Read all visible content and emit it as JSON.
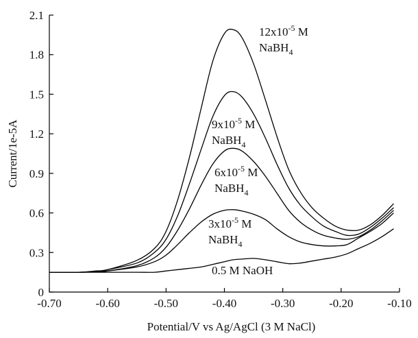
{
  "chart_data": {
    "type": "line",
    "title": "",
    "xlabel": "Potential/V vs Ag/AgCl (3 M NaCl)",
    "ylabel": "Current/1e-5A",
    "xlim": [
      -0.7,
      -0.1
    ],
    "ylim": [
      0,
      2.1
    ],
    "xticks": [
      "-0.70",
      "-0.60",
      "-0.50",
      "-0.40",
      "-0.30",
      "-0.20",
      "-0.10"
    ],
    "yticks": [
      "0",
      "0.3",
      "0.6",
      "0.9",
      "1.2",
      "1.5",
      "1.8",
      "2.1"
    ],
    "grid": false,
    "legend": "none",
    "x": [
      -0.7,
      -0.65,
      -0.62,
      -0.6,
      -0.55,
      -0.52,
      -0.5,
      -0.48,
      -0.46,
      -0.44,
      -0.42,
      -0.4,
      -0.385,
      -0.37,
      -0.35,
      -0.33,
      -0.31,
      -0.29,
      -0.27,
      -0.25,
      -0.23,
      -0.21,
      -0.19,
      -0.17,
      -0.15,
      -0.13,
      -0.11
    ],
    "series": [
      {
        "label_lines": [
          "0.5 M NaOH"
        ],
        "values": [
          0.15,
          0.15,
          0.15,
          0.15,
          0.15,
          0.15,
          0.16,
          0.17,
          0.18,
          0.19,
          0.21,
          0.23,
          0.245,
          0.25,
          0.255,
          0.245,
          0.23,
          0.215,
          0.22,
          0.235,
          0.25,
          0.265,
          0.29,
          0.33,
          0.37,
          0.42,
          0.48
        ]
      },
      {
        "label_lines": [
          "3x10",
          "-5",
          " M",
          "NaBH",
          "4"
        ],
        "values": [
          0.15,
          0.15,
          0.155,
          0.16,
          0.19,
          0.23,
          0.28,
          0.36,
          0.45,
          0.53,
          0.59,
          0.62,
          0.625,
          0.615,
          0.59,
          0.55,
          0.48,
          0.42,
          0.38,
          0.36,
          0.35,
          0.35,
          0.36,
          0.41,
          0.46,
          0.52,
          0.6
        ]
      },
      {
        "label_lines": [
          "6x10",
          "-5",
          " M",
          "NaBH",
          "4"
        ],
        "values": [
          0.15,
          0.15,
          0.155,
          0.16,
          0.2,
          0.26,
          0.34,
          0.47,
          0.63,
          0.81,
          0.97,
          1.07,
          1.09,
          1.07,
          0.99,
          0.88,
          0.75,
          0.62,
          0.53,
          0.47,
          0.43,
          0.41,
          0.4,
          0.42,
          0.47,
          0.54,
          0.62
        ]
      },
      {
        "label_lines": [
          "9x10",
          "-5",
          " M",
          "NaBH",
          "4"
        ],
        "values": [
          0.15,
          0.15,
          0.155,
          0.17,
          0.22,
          0.3,
          0.4,
          0.58,
          0.82,
          1.08,
          1.33,
          1.49,
          1.52,
          1.48,
          1.35,
          1.17,
          0.97,
          0.79,
          0.66,
          0.57,
          0.5,
          0.46,
          0.43,
          0.44,
          0.49,
          0.56,
          0.64
        ]
      },
      {
        "label_lines": [
          "12x10",
          "-5",
          " M",
          "NaBH",
          "4"
        ],
        "values": [
          0.15,
          0.15,
          0.16,
          0.17,
          0.24,
          0.33,
          0.46,
          0.7,
          1.02,
          1.39,
          1.75,
          1.96,
          1.99,
          1.93,
          1.73,
          1.46,
          1.18,
          0.93,
          0.76,
          0.64,
          0.56,
          0.5,
          0.47,
          0.47,
          0.51,
          0.58,
          0.67
        ]
      }
    ]
  }
}
